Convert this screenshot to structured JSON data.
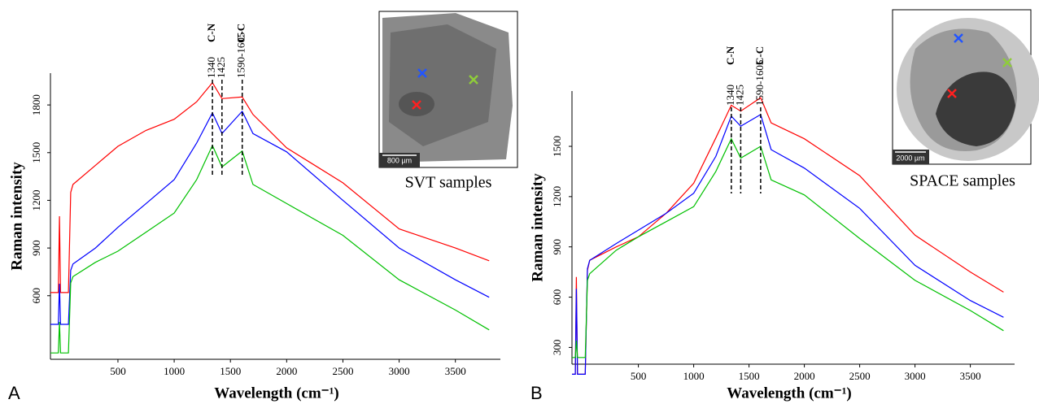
{
  "chart_data": [
    {
      "type": "line",
      "panel": "A",
      "ylabel": "Raman intensity",
      "xlabel": "Wavelength (cm⁻¹)",
      "xlim": [
        -100,
        3900
      ],
      "xticks": [
        500,
        1000,
        1500,
        2000,
        2500,
        3000,
        3500
      ],
      "ylim": [
        200,
        2000
      ],
      "yticks": [
        600,
        900,
        1200,
        1500,
        1800
      ],
      "x": [
        -100,
        -30,
        -20,
        -10,
        60,
        80,
        100,
        300,
        500,
        750,
        1000,
        1200,
        1340,
        1425,
        1605,
        1700,
        2000,
        2500,
        3000,
        3500,
        3800
      ],
      "series": [
        {
          "color": "#ff0000",
          "values": [
            620,
            620,
            1100,
            620,
            620,
            1250,
            1300,
            1420,
            1540,
            1640,
            1710,
            1820,
            1940,
            1840,
            1850,
            1740,
            1530,
            1310,
            1020,
            900,
            820
          ]
        },
        {
          "color": "#0000ff",
          "values": [
            420,
            420,
            675,
            420,
            420,
            760,
            800,
            900,
            1030,
            1180,
            1330,
            1560,
            1750,
            1620,
            1760,
            1620,
            1505,
            1200,
            900,
            700,
            590
          ]
        },
        {
          "color": "#00c000",
          "values": [
            240,
            240,
            435,
            240,
            240,
            680,
            720,
            810,
            880,
            1000,
            1120,
            1330,
            1545,
            1410,
            1510,
            1300,
            1180,
            980,
            700,
            510,
            385
          ]
        }
      ],
      "annotations": [
        {
          "x": 1340,
          "label": "1340",
          "bond": "C-N"
        },
        {
          "x": 1425,
          "label": "1425"
        },
        {
          "x": 1605,
          "label": "1590-1605",
          "bond": "C-C"
        }
      ],
      "inset": {
        "caption": "SVT samples",
        "scale": "800 µm"
      }
    },
    {
      "type": "line",
      "panel": "B",
      "ylabel": "Raman intensity",
      "xlabel": "Wavelength (cm⁻¹)",
      "xlim": [
        -100,
        3900
      ],
      "xticks": [
        500,
        1000,
        1500,
        2000,
        2500,
        3000,
        3500
      ],
      "ylim": [
        200,
        1830
      ],
      "yticks": [
        300,
        600,
        900,
        1200,
        1500
      ],
      "x": [
        -100,
        -70,
        -60,
        -50,
        20,
        40,
        60,
        300,
        500,
        750,
        1000,
        1200,
        1340,
        1425,
        1605,
        1700,
        2000,
        2500,
        3000,
        3500,
        3800
      ],
      "series": [
        {
          "color": "#ff0000",
          "values": [
            140,
            140,
            720,
            140,
            140,
            760,
            820,
            900,
            960,
            1100,
            1280,
            1550,
            1745,
            1710,
            1790,
            1640,
            1545,
            1325,
            970,
            750,
            630
          ]
        },
        {
          "color": "#0000ff",
          "values": [
            140,
            140,
            650,
            140,
            140,
            770,
            820,
            920,
            1000,
            1100,
            1220,
            1440,
            1680,
            1620,
            1690,
            1480,
            1370,
            1130,
            790,
            580,
            480
          ]
        },
        {
          "color": "#00c000",
          "values": [
            240,
            240,
            340,
            240,
            240,
            700,
            740,
            880,
            960,
            1050,
            1140,
            1350,
            1545,
            1430,
            1500,
            1300,
            1210,
            950,
            700,
            520,
            400
          ]
        }
      ],
      "annotations": [
        {
          "x": 1340,
          "label": "1340",
          "bond": "C-N"
        },
        {
          "x": 1425,
          "label": "1425"
        },
        {
          "x": 1605,
          "label": "1590-1605",
          "bond": "C-C"
        }
      ],
      "inset": {
        "caption": "SPACE samples",
        "scale": "2000 µm"
      }
    }
  ]
}
